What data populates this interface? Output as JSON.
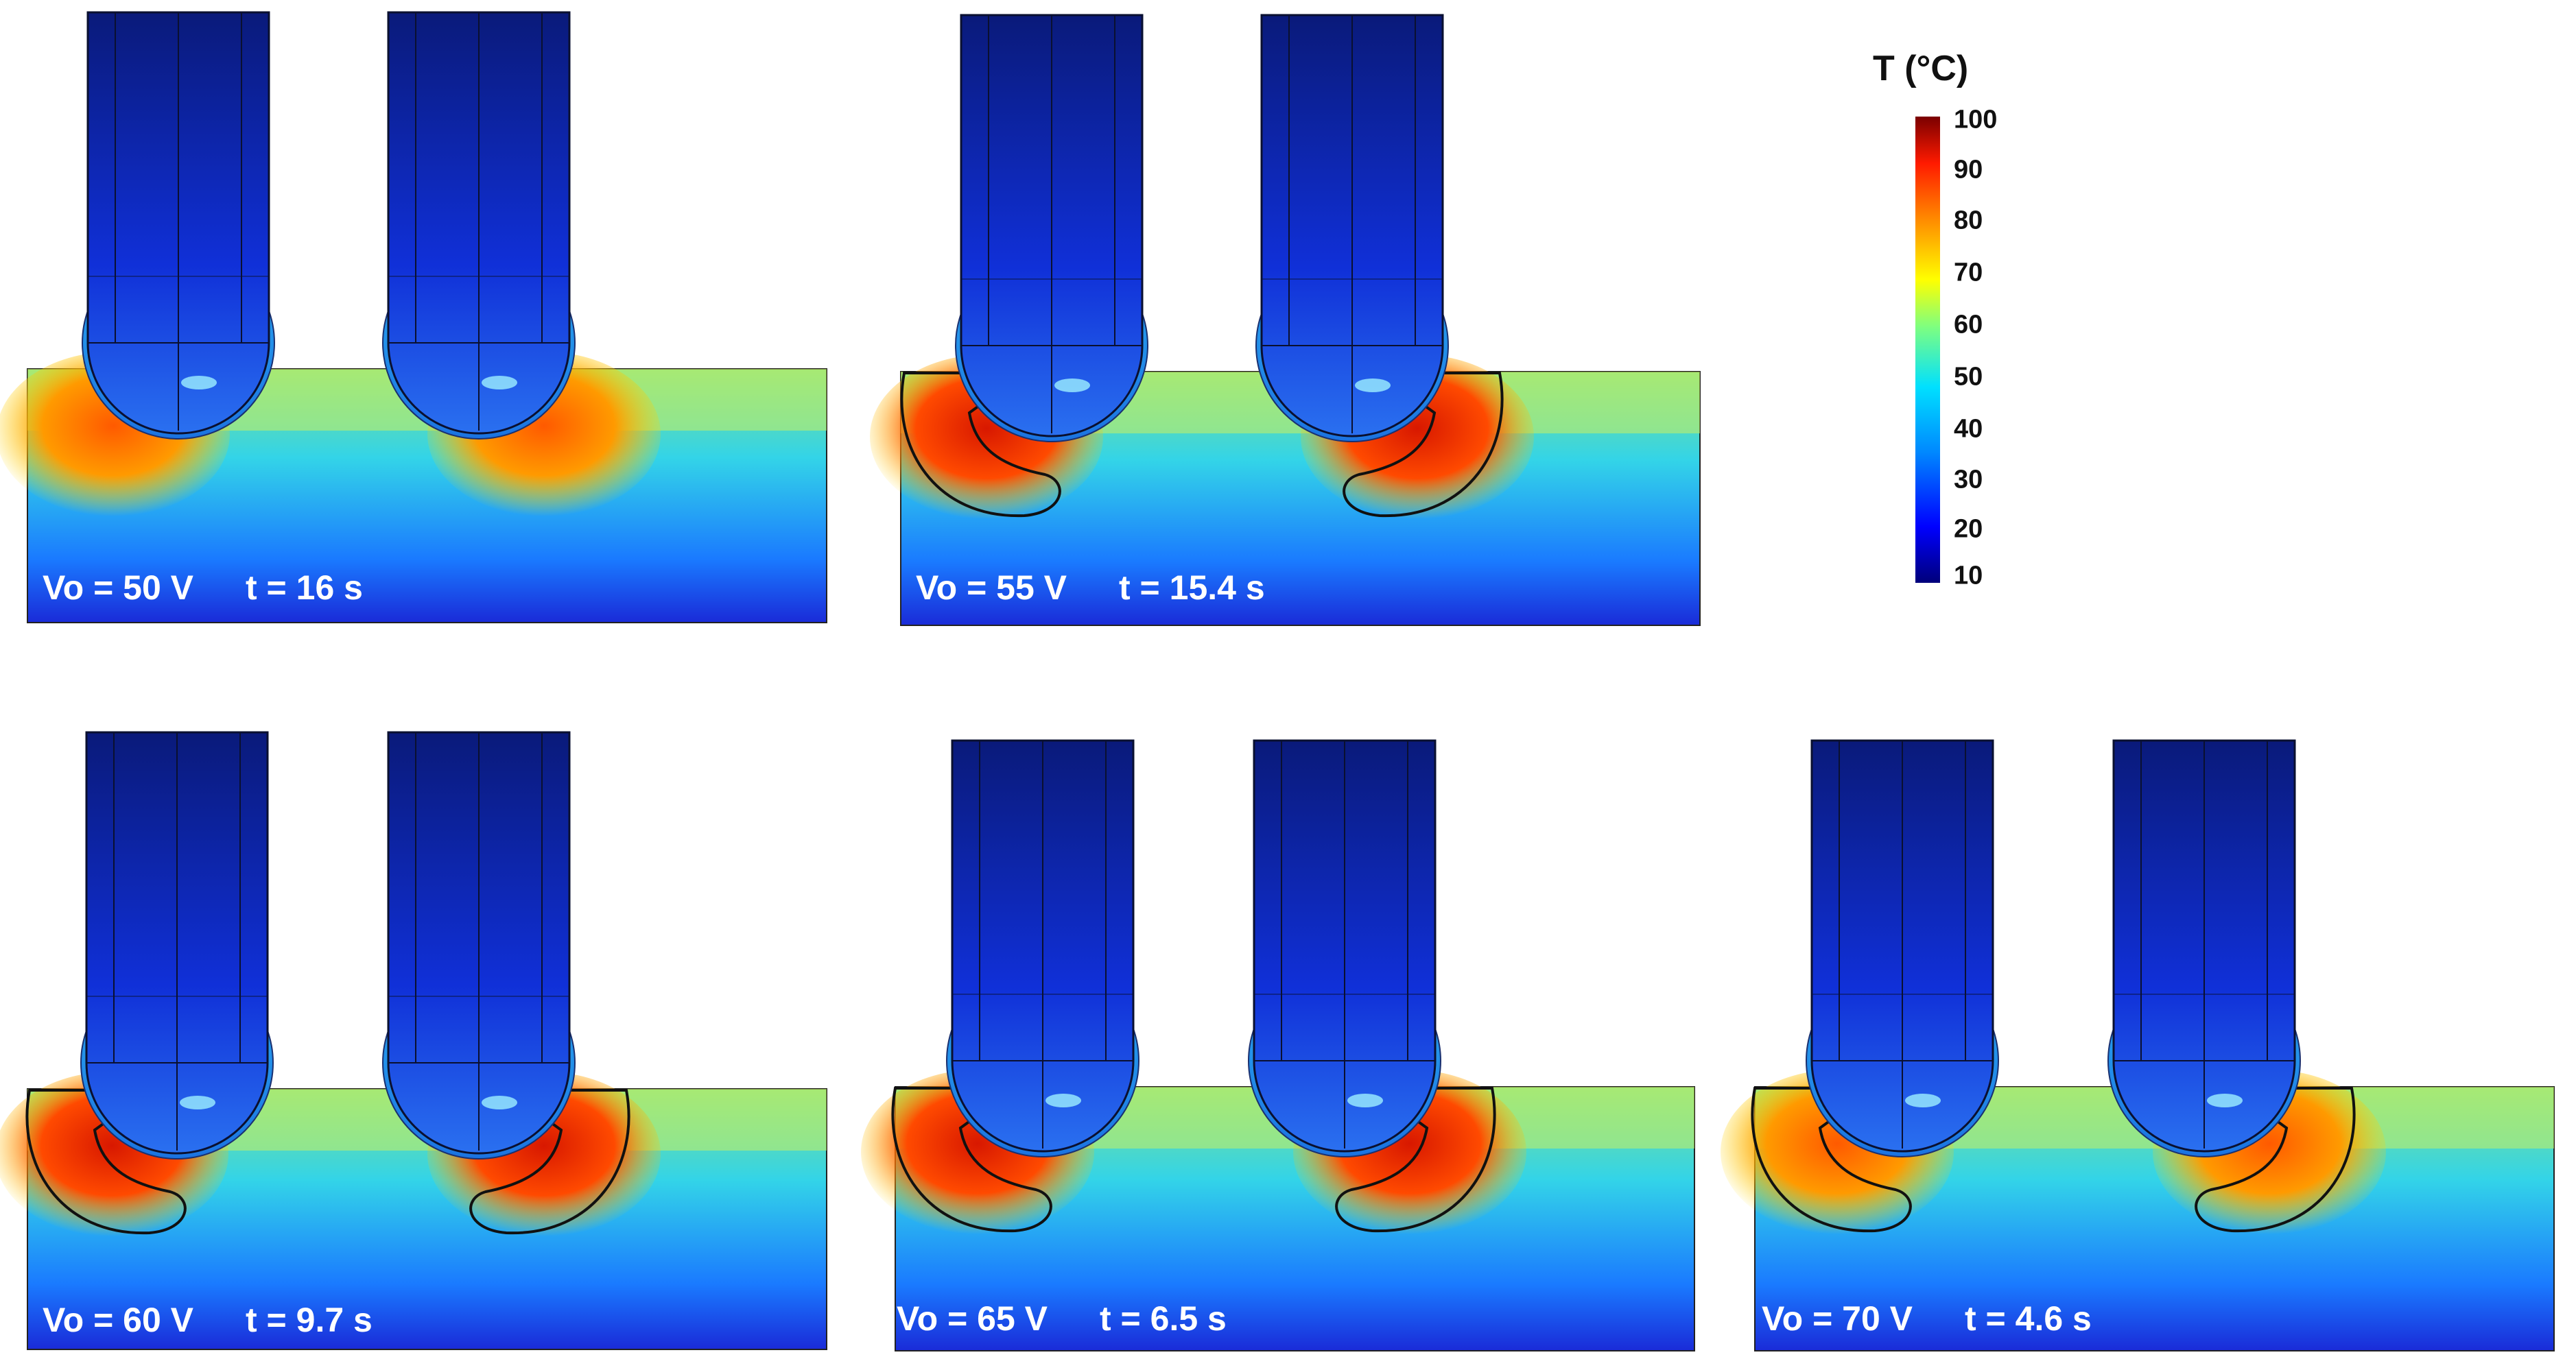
{
  "panels": [
    {
      "voltage_label": "Vo = 50 V",
      "time_label": "t = 16 s",
      "melt_boundary": false
    },
    {
      "voltage_label": "Vo = 55 V",
      "time_label": "t = 15.4 s",
      "melt_boundary": true
    },
    {
      "voltage_label": "Vo = 60 V",
      "time_label": "t = 9.7 s",
      "melt_boundary": true
    },
    {
      "voltage_label": "Vo = 65 V",
      "time_label": "t = 6.5 s",
      "melt_boundary": true
    },
    {
      "voltage_label": "Vo = 70 V",
      "time_label": "t = 4.6 s",
      "melt_boundary": true
    }
  ],
  "colorbar": {
    "title": "T (°C)",
    "ticks": [
      "100",
      "90",
      "80",
      "70",
      "60",
      "50",
      "40",
      "30",
      "20",
      "10"
    ],
    "colors": [
      "#00007a",
      "#0000ff",
      "#0088ff",
      "#00e0ff",
      "#7fff7f",
      "#ffff00",
      "#ff8a00",
      "#ff1a00",
      "#7a0000"
    ]
  }
}
